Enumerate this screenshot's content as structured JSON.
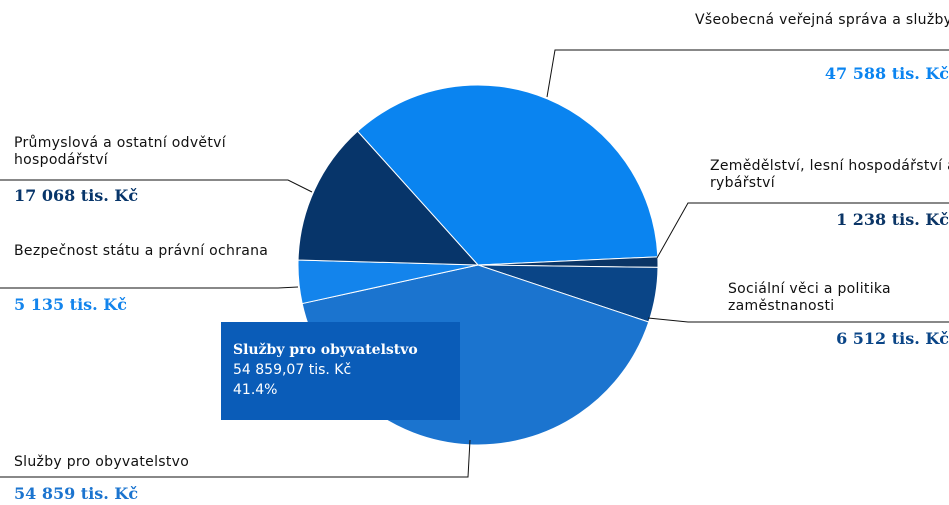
{
  "chart_data": {
    "type": "pie",
    "categories": [
      "Všeobecná veřejná správa a služby",
      "Zemědělství, lesní hospodářství a rybářství",
      "Sociální věci a politika zaměstnanosti",
      "Služby pro obyvatelstvo",
      "Bezpečnost státu a právní ochrana",
      "Průmyslová a ostatní odvětví hospodářství"
    ],
    "values": [
      47588,
      1238,
      6512,
      54859,
      5135,
      17068
    ],
    "value_labels": [
      "47 588 tis. Kč",
      "1 238 tis. Kč",
      "6 512 tis. Kč",
      "54 859 tis. Kč",
      "5 135 tis. Kč",
      "17 068 tis. Kč"
    ],
    "colors": [
      "#0a84f0",
      "#0b3566",
      "#0a4587",
      "#1b74cf",
      "#1384ec",
      "#07356a"
    ],
    "tooltip": {
      "title": "Služby pro obyvatelstvo",
      "value": 54859.07,
      "value_label": "54 859,07 tis. Kč",
      "percent": 41.4,
      "percent_label": "41.4%"
    }
  }
}
